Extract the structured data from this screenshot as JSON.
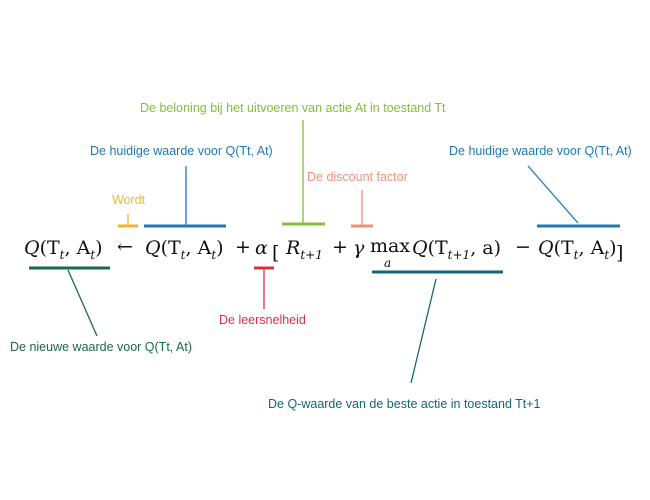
{
  "colors": {
    "new_value": "#1a6b45",
    "wordt": "#f2b531",
    "current": "#1f78b4",
    "learning_rate": "#d93040",
    "reward": "#86bd3c",
    "discount": "#f0907a",
    "q_best": "#16637e"
  },
  "equation": {
    "lhs_func": "Q",
    "lhs_args": "(T",
    "lhs_sub1": "t",
    "lhs_mid": ", A",
    "lhs_sub2": "t",
    "lhs_close": ")",
    "arrow": "←",
    "q2_func": "Q",
    "q2_args": "(T",
    "q2_sub1": "t",
    "q2_mid": ", A",
    "q2_sub2": "t",
    "q2_close": ")",
    "plus1": "+",
    "alpha": "α",
    "lbracket": "[",
    "r": "R",
    "r_sub": "t+1",
    "plus2": "+",
    "gamma": "γ",
    "max": "max",
    "max_under": "a",
    "q3_func": "Q",
    "q3_args": "(T",
    "q3_sub": "t+1",
    "q3_rest": ", a)",
    "minus": "−",
    "q4_func": "Q",
    "q4_args": "(T",
    "q4_sub1": "t",
    "q4_mid": ", A",
    "q4_sub2": "t",
    "q4_close": ")",
    "rbracket": "]"
  },
  "labels": {
    "reward": "De beloning bij het uitvoeren van actie At in toestand Tt",
    "current_left": "De huidige waarde voor Q(Tt, At)",
    "current_right": "De huidige waarde voor Q(Tt, At)",
    "discount": "De discount factor",
    "wordt": "Wordt",
    "learning_rate": "De leersnelheid",
    "new_value": "De nieuwe waarde voor Q(Tt, At)",
    "q_best": "De Q-waarde van de beste actie in toestand Tt+1"
  }
}
